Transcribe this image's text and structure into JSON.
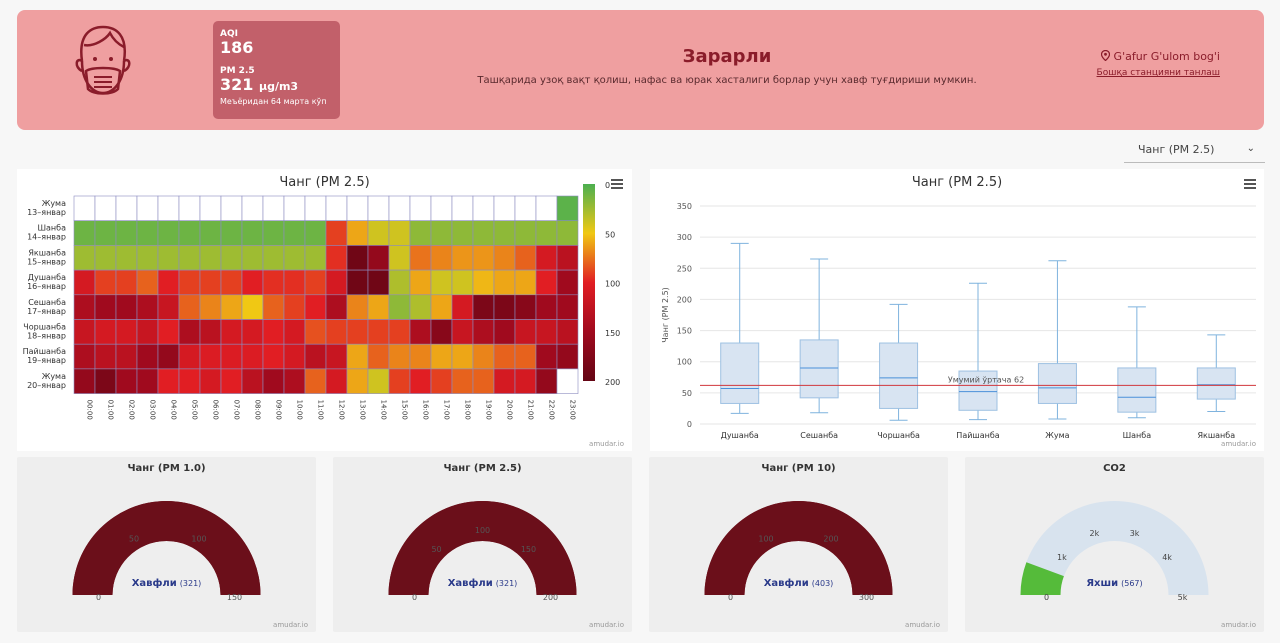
{
  "banner": {
    "aqi_label": "AQI",
    "aqi_value": "186",
    "pm_label": "PM 2.5",
    "pm_value": "321",
    "pm_unit": "µg/m3",
    "pm_note": "Меъёридан 64 марта кўп",
    "status_title": "Зарарли",
    "status_desc": "Ташқарида узоқ вақт қолиш, нафас ва юрак хасталиги борлар учун хавф туғдириши мумкин.",
    "station_name": "G'afur G'ulom bog'i",
    "station_link": "Бошқа станцияни танлаш",
    "bg_color": "#ef9fa0"
  },
  "selector": {
    "value": "Чанг (PM 2.5)"
  },
  "credit": "amudar.io",
  "heatmap": {
    "title": "Чанг (PM 2.5)",
    "days": [
      [
        "Жума",
        "13–январ"
      ],
      [
        "Шанба",
        "14–январ"
      ],
      [
        "Якшанба",
        "15–январ"
      ],
      [
        "Душанба",
        "16–январ"
      ],
      [
        "Сешанба",
        "17–январ"
      ],
      [
        "Чоршанба",
        "18–январ"
      ],
      [
        "Пайшанба",
        "19–январ"
      ],
      [
        "Жума",
        "20–январ"
      ]
    ],
    "hours": [
      "00:00",
      "01:00",
      "02:00",
      "03:00",
      "04:00",
      "05:00",
      "06:00",
      "07:00",
      "08:00",
      "09:00",
      "10:00",
      "11:00",
      "12:00",
      "13:00",
      "14:00",
      "15:00",
      "16:00",
      "17:00",
      "18:00",
      "19:00",
      "20:00",
      "21:00",
      "22:00",
      "23:00"
    ],
    "scale_ticks": [
      "0",
      "50",
      "100",
      "150",
      "200"
    ],
    "values": [
      [
        null,
        null,
        null,
        null,
        null,
        null,
        null,
        null,
        null,
        null,
        null,
        null,
        null,
        null,
        null,
        null,
        null,
        null,
        null,
        null,
        null,
        null,
        null,
        5
      ],
      [
        10,
        10,
        10,
        10,
        10,
        10,
        10,
        10,
        10,
        10,
        10,
        10,
        90,
        60,
        40,
        40,
        20,
        20,
        20,
        20,
        20,
        20,
        20,
        20
      ],
      [
        25,
        25,
        25,
        25,
        25,
        25,
        25,
        25,
        25,
        25,
        25,
        25,
        95,
        190,
        160,
        40,
        75,
        70,
        65,
        65,
        70,
        80,
        110,
        130
      ],
      [
        110,
        90,
        90,
        80,
        100,
        90,
        90,
        90,
        100,
        95,
        95,
        90,
        110,
        190,
        190,
        30,
        60,
        40,
        40,
        55,
        60,
        60,
        100,
        150
      ],
      [
        140,
        150,
        150,
        140,
        120,
        80,
        70,
        60,
        50,
        80,
        90,
        100,
        140,
        70,
        60,
        20,
        30,
        60,
        110,
        180,
        180,
        170,
        150,
        150
      ],
      [
        120,
        110,
        110,
        120,
        100,
        140,
        130,
        110,
        110,
        100,
        110,
        85,
        90,
        90,
        90,
        90,
        140,
        170,
        120,
        140,
        150,
        120,
        120,
        130
      ],
      [
        140,
        130,
        130,
        150,
        160,
        110,
        105,
        105,
        105,
        100,
        110,
        130,
        120,
        60,
        80,
        70,
        70,
        60,
        60,
        70,
        80,
        80,
        150,
        160
      ],
      [
        160,
        180,
        150,
        150,
        100,
        100,
        110,
        100,
        130,
        150,
        140,
        80,
        110,
        60,
        40,
        90,
        100,
        90,
        80,
        80,
        110,
        110,
        160,
        null
      ]
    ]
  },
  "boxplot": {
    "title": "Чанг (PM 2.5)",
    "ylabel": "Чанг (PM 2.5)",
    "ylim": [
      0,
      350
    ],
    "yticks": [
      0,
      50,
      100,
      150,
      200,
      250,
      300,
      350
    ],
    "mean_label": "Умумий ўртача 62",
    "mean_value": 62,
    "categories": [
      "Душанба",
      "Сешанба",
      "Чоршанба",
      "Пайшанба",
      "Жума",
      "Шанба",
      "Якшанба"
    ],
    "boxes": [
      {
        "min": 17,
        "q1": 33,
        "median": 57,
        "q3": 130,
        "max": 290
      },
      {
        "min": 18,
        "q1": 42,
        "median": 90,
        "q3": 135,
        "max": 265
      },
      {
        "min": 6,
        "q1": 25,
        "median": 74,
        "q3": 130,
        "max": 192
      },
      {
        "min": 7,
        "q1": 22,
        "median": 52,
        "q3": 85,
        "max": 226
      },
      {
        "min": 8,
        "q1": 33,
        "median": 58,
        "q3": 97,
        "max": 262
      },
      {
        "min": 10,
        "q1": 19,
        "median": 43,
        "q3": 90,
        "max": 188
      },
      {
        "min": 20,
        "q1": 40,
        "median": 63,
        "q3": 90,
        "max": 143
      }
    ]
  },
  "chart_data": [
    {
      "type": "heatmap",
      "title": "Чанг (PM 2.5)",
      "x": "hours",
      "y": "days"
    },
    {
      "type": "box",
      "title": "Чанг (PM 2.5)",
      "ylabel": "Чанг (PM 2.5)",
      "ylim": [
        0,
        350
      ]
    }
  ],
  "gauges": [
    {
      "title": "Чанг (PM 1.0)",
      "status": "Хавфли",
      "value_text": "(321)",
      "ticks": [
        "0",
        "50",
        "100",
        "150"
      ],
      "max": 150,
      "value": 321,
      "color": "#6b0f1a",
      "bg": "#6b0f1a"
    },
    {
      "title": "Чанг (PM 2.5)",
      "status": "Хавфли",
      "value_text": "(321)",
      "ticks": [
        "0",
        "50",
        "100",
        "150",
        "200"
      ],
      "max": 200,
      "value": 321,
      "color": "#6b0f1a",
      "bg": "#6b0f1a"
    },
    {
      "title": "Чанг (PM 10)",
      "status": "Хавфли",
      "value_text": "(403)",
      "ticks": [
        "0",
        "100",
        "200",
        "300"
      ],
      "max": 300,
      "value": 403,
      "color": "#6b0f1a",
      "bg": "#6b0f1a"
    },
    {
      "title": "CO2",
      "status": "Яхши",
      "value_text": "(567)",
      "ticks": [
        "0",
        "1k",
        "2k",
        "3k",
        "4k",
        "5k"
      ],
      "max": 5000,
      "value": 567,
      "color": "#55bb3a",
      "bg": "#d8e3ee"
    }
  ]
}
